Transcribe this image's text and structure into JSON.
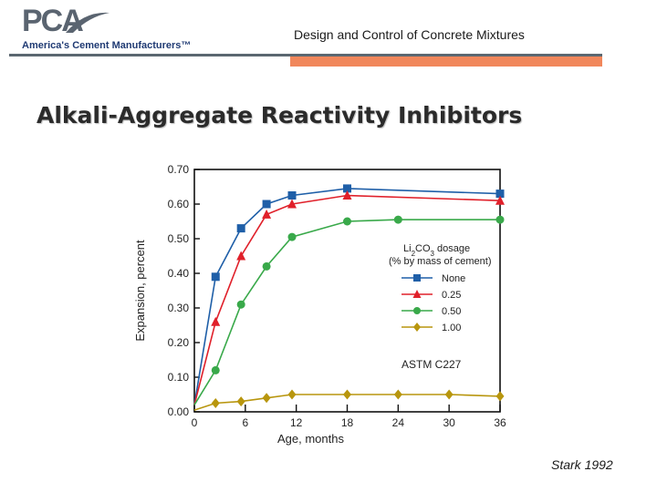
{
  "logo": {
    "mark": "PCA",
    "tagline": "America's Cement Manufacturers™"
  },
  "header": {
    "title": "Design and Control of Concrete Mixtures"
  },
  "slide": {
    "title": "Alkali-Aggregate Reactivity Inhibitors"
  },
  "source": "Stark 1992",
  "chart_data": {
    "type": "line",
    "xlabel": "Age, months",
    "ylabel": "Expansion, percent",
    "xlim": [
      0,
      36
    ],
    "ylim": [
      0,
      0.7
    ],
    "xticks": [
      0,
      6,
      12,
      18,
      24,
      30,
      36
    ],
    "yticks": [
      "0.00",
      "0.10",
      "0.20",
      "0.30",
      "0.40",
      "0.50",
      "0.60",
      "0.70"
    ],
    "legend": {
      "title_line1_pre": "Li",
      "title_line1_sub1": "2",
      "title_line1_mid": "CO",
      "title_line1_sub2": "3",
      "title_line1_post": " dosage",
      "title_line2": "(% by mass of cement)",
      "position": "center-right"
    },
    "annotation": "ASTM C227",
    "series": [
      {
        "name": "None",
        "color": "#1f5fa8",
        "marker": "square",
        "x": [
          0,
          2.5,
          5.5,
          8.5,
          11.5,
          18,
          36
        ],
        "y": [
          0.02,
          0.39,
          0.53,
          0.6,
          0.625,
          0.645,
          0.63
        ]
      },
      {
        "name": "0.25",
        "color": "#e0202a",
        "marker": "triangle",
        "x": [
          0,
          2.5,
          5.5,
          8.5,
          11.5,
          18,
          36
        ],
        "y": [
          0.02,
          0.26,
          0.45,
          0.57,
          0.6,
          0.625,
          0.61
        ]
      },
      {
        "name": "0.50",
        "color": "#39a94a",
        "marker": "circle",
        "x": [
          0,
          2.5,
          5.5,
          8.5,
          11.5,
          18,
          24,
          36
        ],
        "y": [
          0.02,
          0.12,
          0.31,
          0.42,
          0.505,
          0.55,
          0.555,
          0.555
        ]
      },
      {
        "name": "1.00",
        "color": "#b8960e",
        "marker": "diamond",
        "x": [
          0,
          2.5,
          5.5,
          8.5,
          11.5,
          18,
          24,
          30,
          36
        ],
        "y": [
          0.005,
          0.025,
          0.03,
          0.04,
          0.05,
          0.05,
          0.05,
          0.05,
          0.045
        ]
      }
    ]
  }
}
